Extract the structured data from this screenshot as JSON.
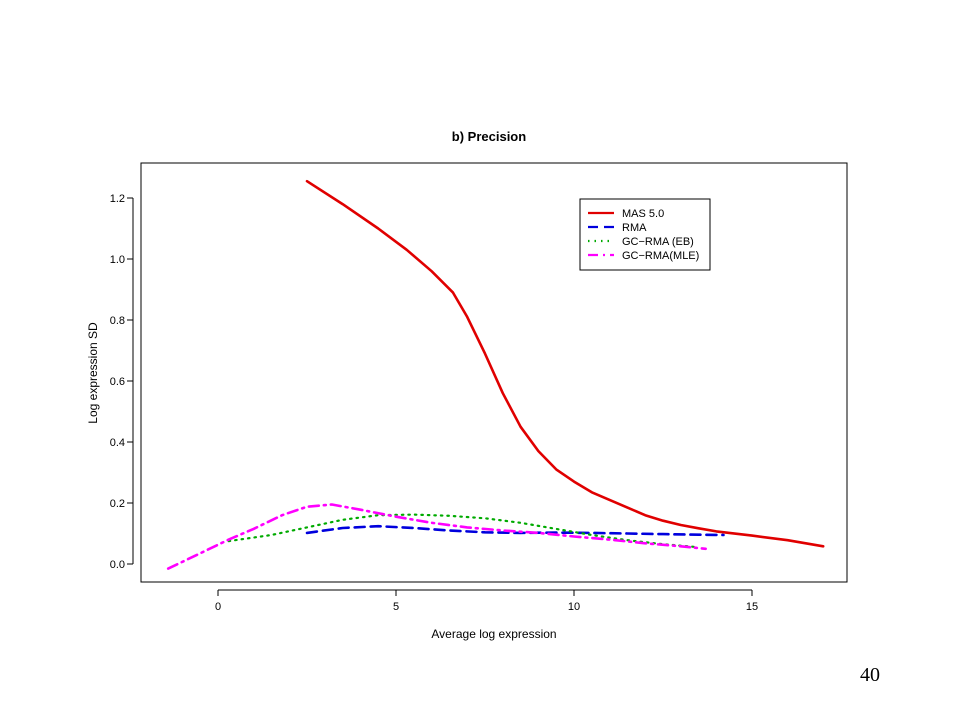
{
  "page_number": "40",
  "chart_data": {
    "type": "line",
    "title": "b) Precision",
    "xlabel": "Average log expression",
    "ylabel": "Log expression SD",
    "xlim": [
      -2.2,
      17.8
    ],
    "ylim": [
      -0.06,
      1.3
    ],
    "x_ticks": [
      0,
      5,
      10,
      15
    ],
    "y_ticks": [
      0.0,
      0.2,
      0.4,
      0.6,
      0.8,
      1.0,
      1.2
    ],
    "y_tick_labels": [
      "0.0",
      "0.2",
      "0.4",
      "0.6",
      "0.8",
      "1.0",
      "1.2"
    ],
    "grid": false,
    "legend_position": "top-right",
    "series": [
      {
        "name": "MAS 5.0",
        "color": "#e00000",
        "dash": "solid",
        "points": [
          [
            2.5,
            1.255
          ],
          [
            3.5,
            1.18
          ],
          [
            4.5,
            1.1
          ],
          [
            5.3,
            1.03
          ],
          [
            6.0,
            0.96
          ],
          [
            6.6,
            0.89
          ],
          [
            7.0,
            0.81
          ],
          [
            7.5,
            0.69
          ],
          [
            8.0,
            0.56
          ],
          [
            8.5,
            0.45
          ],
          [
            9.0,
            0.37
          ],
          [
            9.5,
            0.31
          ],
          [
            10.0,
            0.27
          ],
          [
            10.5,
            0.235
          ],
          [
            11.0,
            0.21
          ],
          [
            11.5,
            0.185
          ],
          [
            12.0,
            0.16
          ],
          [
            12.5,
            0.142
          ],
          [
            13.0,
            0.128
          ],
          [
            13.5,
            0.117
          ],
          [
            14.0,
            0.107
          ],
          [
            15.0,
            0.093
          ],
          [
            16.0,
            0.078
          ],
          [
            17.0,
            0.058
          ]
        ]
      },
      {
        "name": "RMA",
        "color": "#0000dd",
        "dash": "dashed",
        "points": [
          [
            2.5,
            0.102
          ],
          [
            3.5,
            0.118
          ],
          [
            4.5,
            0.124
          ],
          [
            5.5,
            0.118
          ],
          [
            6.5,
            0.11
          ],
          [
            7.5,
            0.104
          ],
          [
            8.5,
            0.102
          ],
          [
            9.5,
            0.103
          ],
          [
            10.5,
            0.102
          ],
          [
            11.5,
            0.1
          ],
          [
            12.5,
            0.098
          ],
          [
            13.5,
            0.096
          ],
          [
            14.2,
            0.095
          ]
        ]
      },
      {
        "name": "GC−RMA (EB)",
        "color": "#00aa00",
        "dash": "dotted",
        "points": [
          [
            0.3,
            0.075
          ],
          [
            1.5,
            0.095
          ],
          [
            2.5,
            0.12
          ],
          [
            3.5,
            0.145
          ],
          [
            4.5,
            0.16
          ],
          [
            5.5,
            0.162
          ],
          [
            6.5,
            0.158
          ],
          [
            7.5,
            0.15
          ],
          [
            8.5,
            0.135
          ],
          [
            9.5,
            0.115
          ],
          [
            10.5,
            0.095
          ],
          [
            11.5,
            0.078
          ],
          [
            12.5,
            0.065
          ],
          [
            13.5,
            0.055
          ]
        ]
      },
      {
        "name": "GC−RMA(MLE)",
        "color": "#ff00ff",
        "dash": "dashdot",
        "points": [
          [
            -1.4,
            -0.015
          ],
          [
            -0.5,
            0.035
          ],
          [
            0.3,
            0.08
          ],
          [
            1.0,
            0.115
          ],
          [
            1.8,
            0.16
          ],
          [
            2.5,
            0.188
          ],
          [
            3.2,
            0.195
          ],
          [
            4.0,
            0.178
          ],
          [
            5.0,
            0.155
          ],
          [
            6.0,
            0.135
          ],
          [
            7.0,
            0.12
          ],
          [
            8.0,
            0.11
          ],
          [
            9.0,
            0.102
          ],
          [
            10.0,
            0.09
          ],
          [
            11.0,
            0.08
          ],
          [
            12.0,
            0.068
          ],
          [
            13.0,
            0.058
          ],
          [
            13.7,
            0.05
          ]
        ]
      }
    ]
  }
}
